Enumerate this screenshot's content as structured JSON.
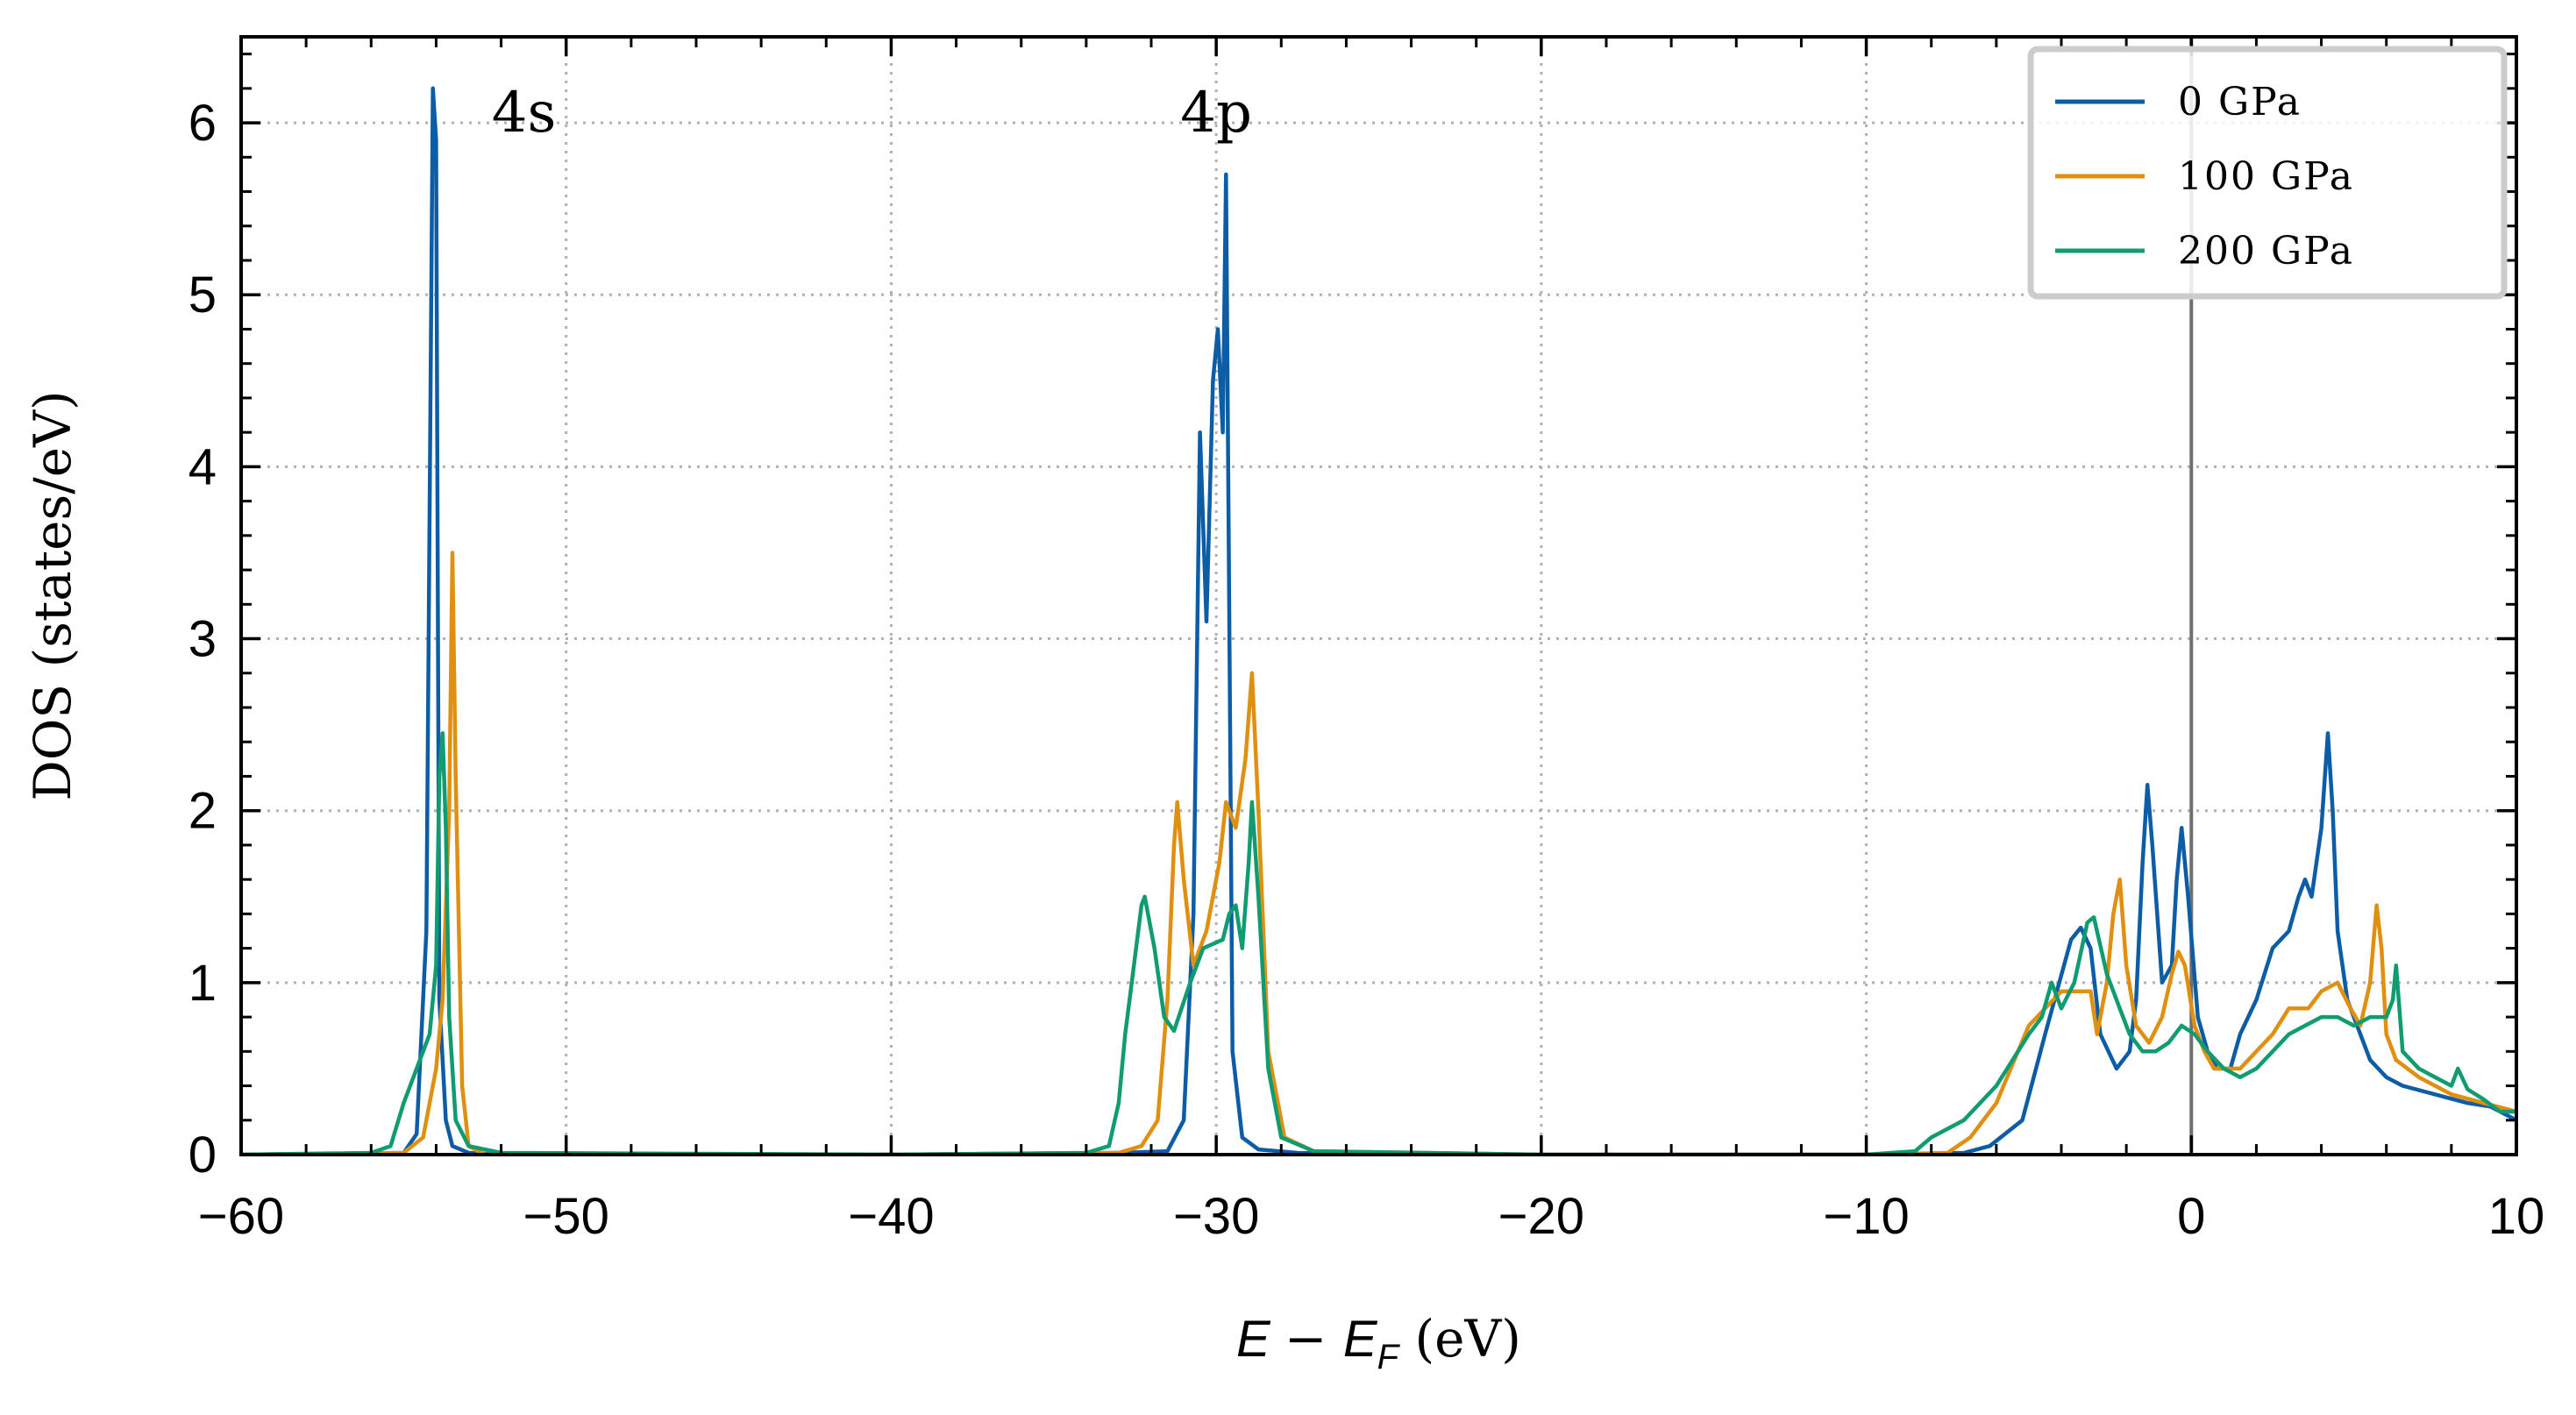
{
  "chart_data": {
    "type": "line",
    "xlabel": "E − E_F (eV)",
    "ylabel": "DOS (states/eV)",
    "xlim": [
      -60,
      10
    ],
    "ylim": [
      0,
      6.5
    ],
    "xticks": [
      -60,
      -50,
      -40,
      -30,
      -20,
      -10,
      0,
      10
    ],
    "xtick_labels": [
      "−60",
      "−50",
      "−40",
      "−30",
      "−20",
      "−10",
      "0",
      "10"
    ],
    "yticks": [
      0,
      1,
      2,
      3,
      4,
      5,
      6
    ],
    "ytick_labels": [
      "0",
      "1",
      "2",
      "3",
      "4",
      "5",
      "6"
    ],
    "grid": true,
    "legend_position": "top-right",
    "fermi_line_x": 0,
    "annotations": [
      {
        "text": "4s",
        "x": -51.3,
        "y": 5.95
      },
      {
        "text": "4p",
        "x": -30.0,
        "y": 5.95
      }
    ],
    "colors": {
      "series_0": "#0C5DA5",
      "series_1": "#E09010",
      "series_2": "#109C70",
      "fermi": "#707070",
      "grid": "#b0b0b0"
    },
    "series": [
      {
        "name": "0 GPa",
        "color": "#0C5DA5",
        "x": [
          -60,
          -55,
          -54.6,
          -54.3,
          -54.1,
          -54.0,
          -53.9,
          -53.7,
          -53.5,
          -53.0,
          -52.0,
          -40,
          -33.0,
          -31.5,
          -31.0,
          -30.7,
          -30.5,
          -30.3,
          -30.1,
          -29.95,
          -29.8,
          -29.7,
          -29.5,
          -29.2,
          -28.7,
          -27.5,
          -20,
          -10,
          -7.0,
          -6.2,
          -5.2,
          -4.5,
          -3.7,
          -3.4,
          -3.1,
          -2.8,
          -2.3,
          -1.9,
          -1.7,
          -1.5,
          -1.35,
          -1.2,
          -0.9,
          -0.6,
          -0.45,
          -0.3,
          -0.1,
          0.2,
          0.5,
          0.8,
          1.2,
          1.5,
          2.0,
          2.5,
          3.0,
          3.3,
          3.5,
          3.7,
          4.0,
          4.2,
          4.35,
          4.5,
          4.8,
          5.5,
          6.0,
          6.5,
          7.5,
          8.5,
          9.2,
          9.8,
          10
        ],
        "y": [
          0,
          0.01,
          0.12,
          1.3,
          6.2,
          5.9,
          0.9,
          0.2,
          0.05,
          0.01,
          0,
          0,
          0.01,
          0.02,
          0.2,
          1.4,
          4.2,
          3.1,
          4.5,
          4.8,
          4.2,
          5.7,
          0.6,
          0.1,
          0.03,
          0.01,
          0,
          0,
          0.01,
          0.05,
          0.2,
          0.7,
          1.25,
          1.32,
          1.2,
          0.7,
          0.5,
          0.6,
          0.9,
          1.7,
          2.15,
          1.8,
          1.0,
          1.1,
          1.6,
          1.9,
          1.5,
          0.8,
          0.6,
          0.5,
          0.5,
          0.7,
          0.9,
          1.2,
          1.3,
          1.5,
          1.6,
          1.5,
          1.9,
          2.45,
          2.0,
          1.3,
          0.9,
          0.55,
          0.45,
          0.4,
          0.35,
          0.3,
          0.28,
          0.22,
          0.2
        ]
      },
      {
        "name": "100 GPa",
        "color": "#E09010",
        "x": [
          -60,
          -55,
          -54.4,
          -54.0,
          -53.8,
          -53.6,
          -53.5,
          -53.4,
          -53.2,
          -53.0,
          -52.5,
          -40,
          -33.0,
          -32.3,
          -31.8,
          -31.5,
          -31.3,
          -31.2,
          -31.0,
          -30.7,
          -30.3,
          -29.9,
          -29.7,
          -29.4,
          -29.1,
          -28.9,
          -28.7,
          -28.4,
          -27.9,
          -27.0,
          -20,
          -10,
          -7.5,
          -6.8,
          -6.0,
          -5.0,
          -4.0,
          -3.5,
          -3.1,
          -2.9,
          -2.6,
          -2.4,
          -2.2,
          -2.0,
          -1.7,
          -1.3,
          -0.9,
          -0.6,
          -0.4,
          -0.2,
          0.1,
          0.4,
          0.7,
          1.0,
          1.5,
          2.0,
          2.5,
          3.0,
          3.6,
          4.0,
          4.5,
          4.9,
          5.2,
          5.5,
          5.7,
          5.85,
          6.0,
          6.3,
          7.0,
          8.0,
          9.0,
          10
        ],
        "y": [
          0,
          0.01,
          0.1,
          0.5,
          0.9,
          2.0,
          3.5,
          2.2,
          0.4,
          0.05,
          0,
          0,
          0.01,
          0.05,
          0.2,
          0.9,
          1.8,
          2.05,
          1.6,
          1.1,
          1.3,
          1.7,
          2.05,
          1.9,
          2.3,
          2.8,
          2.0,
          0.6,
          0.1,
          0.02,
          0,
          0,
          0.01,
          0.1,
          0.3,
          0.75,
          0.95,
          0.95,
          0.95,
          0.7,
          1.0,
          1.4,
          1.6,
          1.1,
          0.75,
          0.65,
          0.8,
          1.05,
          1.18,
          1.1,
          0.75,
          0.6,
          0.5,
          0.5,
          0.5,
          0.6,
          0.7,
          0.85,
          0.85,
          0.95,
          1.0,
          0.85,
          0.75,
          1.0,
          1.45,
          1.2,
          0.7,
          0.55,
          0.45,
          0.35,
          0.3,
          0.25
        ]
      },
      {
        "name": "200 GPa",
        "color": "#109C70",
        "x": [
          -60,
          -56,
          -55.4,
          -55.0,
          -54.6,
          -54.2,
          -54.0,
          -53.9,
          -53.8,
          -53.7,
          -53.6,
          -53.4,
          -53.0,
          -52.0,
          -40,
          -34.0,
          -33.3,
          -33.0,
          -32.8,
          -32.6,
          -32.3,
          -32.2,
          -31.9,
          -31.6,
          -31.3,
          -30.8,
          -30.4,
          -29.8,
          -29.6,
          -29.4,
          -29.2,
          -29.0,
          -28.9,
          -28.7,
          -28.4,
          -28.0,
          -27.0,
          -20,
          -10,
          -8.5,
          -8.0,
          -7.0,
          -6.0,
          -5.0,
          -4.6,
          -4.3,
          -4.0,
          -3.6,
          -3.2,
          -3.0,
          -2.6,
          -2.2,
          -1.9,
          -1.5,
          -1.1,
          -0.7,
          -0.3,
          0.1,
          0.5,
          1.0,
          1.5,
          2.0,
          2.5,
          3.0,
          3.5,
          4.0,
          4.5,
          5.0,
          5.5,
          6.0,
          6.2,
          6.3,
          6.5,
          7.0,
          7.5,
          8.0,
          8.2,
          8.5,
          9.0,
          9.5,
          10
        ],
        "y": [
          0,
          0.01,
          0.05,
          0.3,
          0.5,
          0.7,
          1.1,
          2.2,
          2.45,
          1.9,
          0.8,
          0.2,
          0.05,
          0.01,
          0,
          0.01,
          0.05,
          0.3,
          0.7,
          1.0,
          1.45,
          1.5,
          1.2,
          0.8,
          0.72,
          1.0,
          1.2,
          1.25,
          1.4,
          1.45,
          1.2,
          1.7,
          2.05,
          1.5,
          0.5,
          0.1,
          0.02,
          0,
          0,
          0.02,
          0.1,
          0.2,
          0.4,
          0.7,
          0.8,
          1.0,
          0.85,
          1.0,
          1.35,
          1.38,
          1.05,
          0.85,
          0.7,
          0.6,
          0.6,
          0.65,
          0.75,
          0.7,
          0.6,
          0.5,
          0.45,
          0.5,
          0.6,
          0.7,
          0.75,
          0.8,
          0.8,
          0.75,
          0.8,
          0.8,
          0.9,
          1.1,
          0.6,
          0.5,
          0.45,
          0.4,
          0.5,
          0.38,
          0.32,
          0.25,
          0.25
        ]
      }
    ]
  }
}
